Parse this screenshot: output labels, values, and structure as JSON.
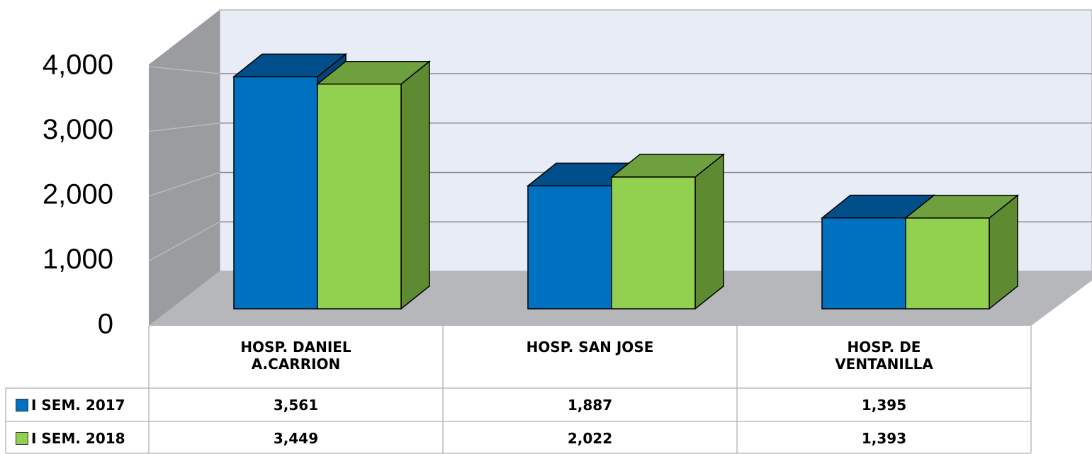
{
  "chart_data": {
    "type": "bar3d",
    "categories": [
      "HOSP. DANIEL A.CARRION",
      "HOSP. SAN JOSE",
      "HOSP. DE VENTANILLA"
    ],
    "series": [
      {
        "name": "I SEM. 2017",
        "color": "#0070c0",
        "values": [
          3561,
          1887,
          1395
        ],
        "value_labels": [
          "3,561",
          "1,887",
          "1,395"
        ]
      },
      {
        "name": "I SEM. 2018",
        "color": "#92d050",
        "values": [
          3449,
          2022,
          1393
        ],
        "value_labels": [
          "3,449",
          "2,022",
          "1,393"
        ]
      }
    ],
    "ylim": [
      0,
      4000
    ],
    "yticks": [
      0,
      {
        "value": 1000,
        "label": "1,000"
      },
      {
        "value": 2000,
        "label": "2,000"
      },
      {
        "value": 3000,
        "label": "3,000"
      },
      {
        "value": 4000,
        "label": "4,000"
      }
    ],
    "grid": true
  }
}
